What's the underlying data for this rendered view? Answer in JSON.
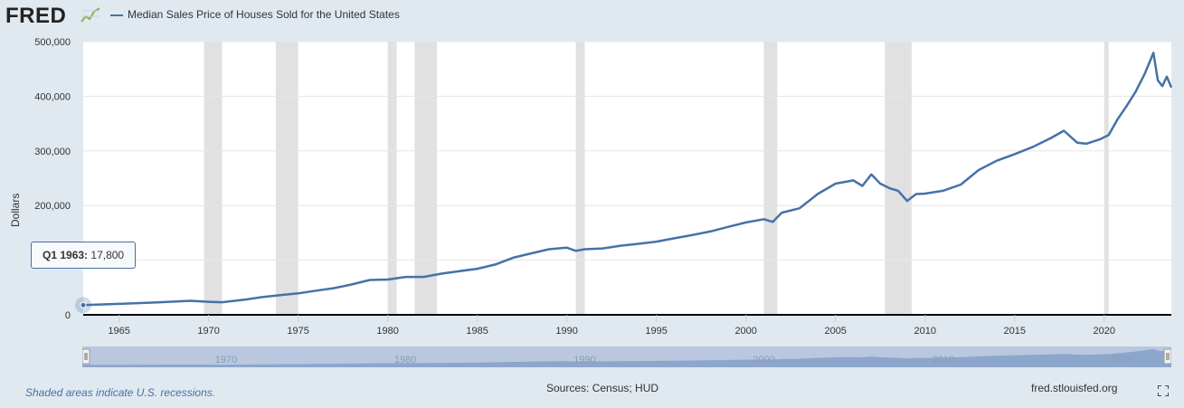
{
  "header": {
    "logo_text": "FRED",
    "legend_label": "Median Sales Price of Houses Sold for the United States",
    "series_color": "#4572a7"
  },
  "chart_data": {
    "type": "line",
    "title": "Median Sales Price of Houses Sold for the United States",
    "ylabel": "Dollars",
    "ylim": [
      0,
      500000
    ],
    "yticks": [
      0,
      100000,
      200000,
      300000,
      400000,
      500000
    ],
    "ytick_labels": [
      "0",
      "",
      "200,000",
      "300,000",
      "400,000",
      "500,000"
    ],
    "xlim": [
      1963.0,
      2023.75
    ],
    "xticks": [
      1965,
      1970,
      1975,
      1980,
      1985,
      1990,
      1995,
      2000,
      2005,
      2010,
      2015,
      2020
    ],
    "grid": "horizontal",
    "recessions": [
      [
        1969.75,
        1970.75
      ],
      [
        1973.75,
        1975.0
      ],
      [
        1980.0,
        1980.5
      ],
      [
        1981.5,
        1982.75
      ],
      [
        1990.5,
        1991.0
      ],
      [
        2001.0,
        2001.75
      ],
      [
        2007.75,
        2009.25
      ],
      [
        2020.0,
        2020.25
      ]
    ],
    "series": [
      {
        "name": "Median Sales Price of Houses Sold for the United States",
        "color": "#4572a7",
        "x": [
          1963.0,
          1965.0,
          1967.0,
          1969.0,
          1970.0,
          1970.75,
          1972.0,
          1973.0,
          1974.0,
          1975.0,
          1976.0,
          1977.0,
          1978.0,
          1979.0,
          1980.0,
          1981.0,
          1982.0,
          1983.0,
          1984.0,
          1985.0,
          1986.0,
          1987.0,
          1988.0,
          1989.0,
          1990.0,
          1990.5,
          1991.0,
          1992.0,
          1993.0,
          1994.0,
          1995.0,
          1996.0,
          1997.0,
          1998.0,
          1999.0,
          2000.0,
          2001.0,
          2001.5,
          2002.0,
          2003.0,
          2004.0,
          2005.0,
          2006.0,
          2006.5,
          2007.0,
          2007.5,
          2008.0,
          2008.5,
          2009.0,
          2009.5,
          2010.0,
          2011.0,
          2012.0,
          2013.0,
          2014.0,
          2015.0,
          2016.0,
          2017.0,
          2017.75,
          2018.5,
          2019.0,
          2019.75,
          2020.25,
          2020.75,
          2021.25,
          2021.75,
          2022.25,
          2022.75,
          2023.0,
          2023.25,
          2023.5,
          2023.75
        ],
        "values": [
          17800,
          20000,
          22500,
          25600,
          23900,
          23000,
          27600,
          32500,
          36000,
          39300,
          44200,
          48800,
          55700,
          63700,
          64600,
          69400,
          69300,
          75300,
          79900,
          84300,
          92000,
          104500,
          112500,
          120000,
          122900,
          117000,
          120000,
          121500,
          126500,
          130000,
          133900,
          140000,
          146000,
          152500,
          161000,
          169000,
          175000,
          170000,
          187000,
          195000,
          221000,
          240000,
          246000,
          236000,
          257000,
          240000,
          232000,
          227000,
          208400,
          221000,
          221800,
          227000,
          238400,
          265000,
          282000,
          294000,
          307000,
          323000,
          337000,
          315000,
          313000,
          321000,
          329000,
          358000,
          382000,
          408000,
          440000,
          479500,
          429000,
          418500,
          436000,
          416100
        ]
      }
    ]
  },
  "tooltip": {
    "period": "Q1 1963:",
    "value": "17,800"
  },
  "navigator": {
    "labels": [
      "1970",
      "1980",
      "1990",
      "2000",
      "2010",
      "2020"
    ]
  },
  "footer": {
    "recession_note": "Shaded areas indicate U.S. recessions.",
    "sources": "Sources: Census; HUD",
    "site": "fred.stlouisfed.org"
  }
}
